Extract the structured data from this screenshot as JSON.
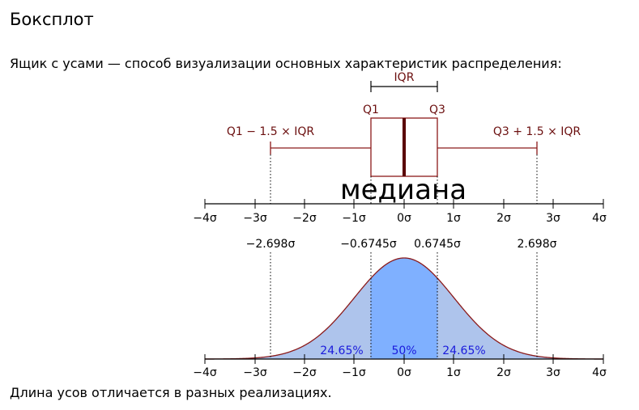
{
  "slide": {
    "title": "Боксплот",
    "intro": "Ящик с усами — способ визуализации основных характеристик распределения:",
    "footer": "Длина усов отличается в разных реализациях."
  },
  "boxplot": {
    "iqr_label": "IQR",
    "q1_label": "Q1",
    "q3_label": "Q3",
    "lower_whisker_label": "Q1 − 1.5 × IQR",
    "upper_whisker_label": "Q3 + 1.5 × IQR",
    "median_label": "медиана"
  },
  "axis_ticks": [
    "−4σ",
    "−3σ",
    "−2σ",
    "−1σ",
    "0σ",
    "1σ",
    "2σ",
    "3σ",
    "4σ"
  ],
  "markers": [
    "−2.698σ",
    "−0.6745σ",
    "0.6745σ",
    "2.698σ"
  ],
  "regions": [
    "24.65%",
    "50%",
    "24.65%"
  ],
  "colors": {
    "box_edge": "#8b1a1a",
    "median": "#5a0000",
    "curve": "#8b1a1a",
    "tail_fill": "#aec4ec",
    "center_fill": "#7fb0ff",
    "percent_text": "#1a1adc"
  }
}
